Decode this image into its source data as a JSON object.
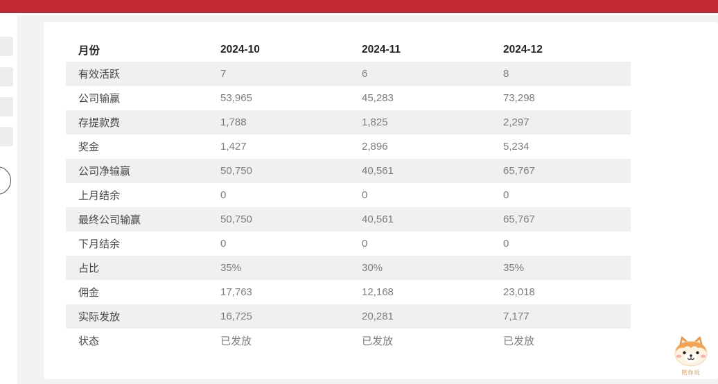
{
  "topbar": {
    "accent_color": "#c1282f",
    "accent_border_color": "#a4333a"
  },
  "table": {
    "header": [
      "月份",
      "2024-10",
      "2024-11",
      "2024-12"
    ],
    "rows": [
      {
        "label": "有效活跃",
        "values": [
          "7",
          "6",
          "8"
        ]
      },
      {
        "label": "公司输赢",
        "values": [
          "53,965",
          "45,283",
          "73,298"
        ]
      },
      {
        "label": "存提款费",
        "values": [
          "1,788",
          "1,825",
          "2,297"
        ]
      },
      {
        "label": "奖金",
        "values": [
          "1,427",
          "2,896",
          "5,234"
        ]
      },
      {
        "label": "公司净输赢",
        "values": [
          "50,750",
          "40,561",
          "65,767"
        ]
      },
      {
        "label": "上月结余",
        "values": [
          "0",
          "0",
          "0"
        ]
      },
      {
        "label": "最终公司输赢",
        "values": [
          "50,750",
          "40,561",
          "65,767"
        ]
      },
      {
        "label": "下月结余",
        "values": [
          "0",
          "0",
          "0"
        ]
      },
      {
        "label": "占比",
        "values": [
          "35%",
          "30%",
          "35%"
        ]
      },
      {
        "label": "佣金",
        "values": [
          "17,763",
          "12,168",
          "23,018"
        ]
      },
      {
        "label": "实际发放",
        "values": [
          "16,725",
          "20,281",
          "7,177"
        ]
      },
      {
        "label": "状态",
        "values": [
          "已发放",
          "已发放",
          "已发放"
        ]
      }
    ],
    "stripe_color": "#f0f0f1"
  },
  "mascot": {
    "caption": "陪你玩"
  }
}
